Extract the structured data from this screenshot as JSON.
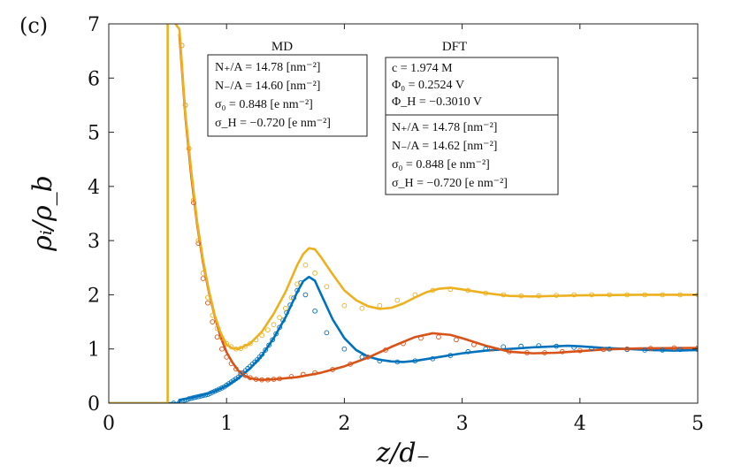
{
  "panel_label": "(c)",
  "chart_data": {
    "type": "line",
    "xlabel": "z/d₋",
    "ylabel": "ρᵢ/ρ_b",
    "xlim": [
      0,
      5
    ],
    "ylim": [
      0,
      7
    ],
    "xticks": [
      0,
      1,
      2,
      3,
      4,
      5
    ],
    "yticks": [
      0,
      1,
      2,
      3,
      4,
      5,
      6,
      7
    ],
    "grid": false,
    "colors": {
      "blue": "#0072BD",
      "red": "#D95319",
      "yellow": "#EDB120"
    },
    "series": [
      {
        "name": "DFT cation (blue)",
        "style": "line",
        "color": "#0072BD",
        "x": [
          0,
          0.49,
          0.5,
          0.6,
          0.6,
          0.7,
          0.8,
          0.9,
          1.0,
          1.1,
          1.2,
          1.3,
          1.4,
          1.5,
          1.6,
          1.65,
          1.7,
          1.75,
          1.8,
          1.9,
          2.0,
          2.1,
          2.2,
          2.3,
          2.4,
          2.5,
          2.6,
          2.8,
          3.0,
          3.2,
          3.4,
          3.6,
          3.8,
          3.9,
          4.0,
          4.2,
          4.4,
          4.6,
          4.8,
          5.0
        ],
        "y": [
          0,
          0,
          0,
          0,
          0.06,
          0.1,
          0.15,
          0.22,
          0.32,
          0.46,
          0.64,
          0.88,
          1.2,
          1.58,
          2.05,
          2.25,
          2.33,
          2.26,
          2.02,
          1.55,
          1.2,
          0.98,
          0.86,
          0.8,
          0.77,
          0.76,
          0.78,
          0.85,
          0.92,
          0.97,
          1.0,
          1.03,
          1.05,
          1.06,
          1.05,
          1.02,
          1.0,
          0.98,
          0.97,
          0.98
        ]
      },
      {
        "name": "DFT anion (red)",
        "style": "line",
        "color": "#D95319",
        "x": [
          0.6,
          0.65,
          0.7,
          0.75,
          0.8,
          0.85,
          0.9,
          0.95,
          1.0,
          1.05,
          1.1,
          1.15,
          1.2,
          1.25,
          1.3,
          1.4,
          1.6,
          1.8,
          2.0,
          2.2,
          2.4,
          2.6,
          2.75,
          2.9,
          3.0,
          3.2,
          3.4,
          3.6,
          3.8,
          4.0,
          4.2,
          4.5,
          5.0
        ],
        "y": [
          6.8,
          5.3,
          4.2,
          3.3,
          2.6,
          2.05,
          1.6,
          1.22,
          0.94,
          0.75,
          0.6,
          0.51,
          0.46,
          0.44,
          0.43,
          0.44,
          0.48,
          0.56,
          0.68,
          0.84,
          1.04,
          1.22,
          1.29,
          1.26,
          1.2,
          1.06,
          0.95,
          0.92,
          0.93,
          0.96,
          0.99,
          1.01,
          1.02
        ]
      },
      {
        "name": "DFT total (yellow)",
        "style": "line",
        "color": "#EDB120",
        "x": [
          0,
          0.49,
          0.5,
          0.5,
          0.5,
          0.6,
          0.65,
          0.7,
          0.75,
          0.8,
          0.85,
          0.9,
          0.95,
          1.0,
          1.05,
          1.1,
          1.2,
          1.3,
          1.4,
          1.5,
          1.6,
          1.65,
          1.7,
          1.75,
          1.8,
          1.9,
          2.0,
          2.1,
          2.2,
          2.3,
          2.4,
          2.5,
          2.6,
          2.7,
          2.8,
          2.9,
          3.0,
          3.2,
          3.4,
          3.6,
          4.0,
          4.5,
          5.0
        ],
        "y": [
          0,
          0,
          0,
          7.2,
          7.2,
          6.9,
          5.35,
          4.3,
          3.35,
          2.65,
          2.08,
          1.62,
          1.3,
          1.08,
          1.01,
          1.0,
          1.1,
          1.32,
          1.65,
          2.05,
          2.55,
          2.75,
          2.86,
          2.84,
          2.7,
          2.38,
          2.08,
          1.9,
          1.79,
          1.74,
          1.76,
          1.84,
          1.95,
          2.05,
          2.11,
          2.13,
          2.1,
          2.03,
          1.98,
          1.97,
          1.99,
          2.0,
          2.0
        ]
      },
      {
        "name": "MD cation (blue circles)",
        "style": "markers",
        "color": "#0072BD",
        "x": [
          0.55,
          0.6,
          0.62,
          0.64,
          0.66,
          0.68,
          0.7,
          0.72,
          0.74,
          0.76,
          0.78,
          0.8,
          0.82,
          0.84,
          0.86,
          0.88,
          0.9,
          0.92,
          0.94,
          0.96,
          0.98,
          1.0,
          1.02,
          1.04,
          1.06,
          1.08,
          1.1,
          1.12,
          1.14,
          1.16,
          1.18,
          1.2,
          1.22,
          1.24,
          1.26,
          1.28,
          1.3,
          1.33,
          1.36,
          1.39,
          1.42,
          1.45,
          1.48,
          1.51,
          1.54,
          1.57,
          1.6,
          1.63,
          1.67,
          1.75,
          1.85,
          2.0,
          2.15,
          2.3,
          2.45,
          2.6,
          2.75,
          2.9,
          3.05,
          3.2,
          3.35,
          3.5,
          3.65,
          3.8,
          3.95,
          4.1,
          4.25,
          4.4,
          4.55,
          4.7,
          4.85,
          5.0
        ],
        "y": [
          0.0,
          0.01,
          0.03,
          0.05,
          0.06,
          0.08,
          0.09,
          0.1,
          0.11,
          0.12,
          0.13,
          0.14,
          0.15,
          0.16,
          0.18,
          0.2,
          0.22,
          0.24,
          0.26,
          0.28,
          0.3,
          0.33,
          0.36,
          0.39,
          0.42,
          0.45,
          0.48,
          0.52,
          0.56,
          0.6,
          0.64,
          0.68,
          0.72,
          0.76,
          0.8,
          0.85,
          0.9,
          0.98,
          1.07,
          1.17,
          1.28,
          1.4,
          1.53,
          1.67,
          1.81,
          1.94,
          2.08,
          2.22,
          2.0,
          1.7,
          1.3,
          1.0,
          0.85,
          0.78,
          0.76,
          0.78,
          0.82,
          0.88,
          0.95,
          1.0,
          1.04,
          1.05,
          1.06,
          1.05,
          1.03,
          1.01,
          1.0,
          0.99,
          0.98,
          0.98,
          0.99,
          0.99
        ]
      },
      {
        "name": "MD anion (red circles)",
        "style": "markers",
        "color": "#D95319",
        "x": [
          0.62,
          0.65,
          0.68,
          0.72,
          0.76,
          0.8,
          0.84,
          0.88,
          0.92,
          0.96,
          1.0,
          1.04,
          1.08,
          1.12,
          1.16,
          1.2,
          1.25,
          1.3,
          1.35,
          1.4,
          1.45,
          1.55,
          1.65,
          1.75,
          1.9,
          2.05,
          2.2,
          2.35,
          2.5,
          2.65,
          2.8,
          2.95,
          3.1,
          3.25,
          3.4,
          3.55,
          3.7,
          3.85,
          4.0,
          4.2,
          4.4,
          4.6,
          4.8,
          5.0
        ],
        "y": [
          6.6,
          5.5,
          4.7,
          3.7,
          2.95,
          2.3,
          1.85,
          1.5,
          1.22,
          1.0,
          0.85,
          0.73,
          0.63,
          0.56,
          0.51,
          0.47,
          0.44,
          0.43,
          0.43,
          0.44,
          0.45,
          0.49,
          0.53,
          0.56,
          0.62,
          0.72,
          0.85,
          0.98,
          1.1,
          1.2,
          1.22,
          1.17,
          1.08,
          1.0,
          0.95,
          0.93,
          0.93,
          0.95,
          0.97,
          0.99,
          1.0,
          1.01,
          1.02,
          1.02
        ]
      },
      {
        "name": "MD total (yellow circles)",
        "style": "markers",
        "color": "#EDB120",
        "x": [
          0.62,
          0.65,
          0.68,
          0.72,
          0.76,
          0.8,
          0.84,
          0.88,
          0.92,
          0.96,
          1.0,
          1.04,
          1.08,
          1.12,
          1.16,
          1.2,
          1.25,
          1.3,
          1.35,
          1.4,
          1.45,
          1.5,
          1.55,
          1.6,
          1.67,
          1.75,
          1.85,
          2.0,
          2.15,
          2.3,
          2.45,
          2.6,
          2.75,
          2.9,
          3.05,
          3.2,
          3.35,
          3.5,
          3.65,
          3.8,
          3.95,
          4.1,
          4.25,
          4.4,
          4.55,
          4.7,
          4.85,
          5.0
        ],
        "y": [
          6.6,
          5.5,
          4.7,
          3.75,
          3.0,
          2.4,
          1.95,
          1.62,
          1.38,
          1.2,
          1.1,
          1.04,
          1.0,
          1.01,
          1.05,
          1.1,
          1.17,
          1.25,
          1.35,
          1.45,
          1.58,
          1.75,
          1.95,
          2.2,
          2.55,
          2.4,
          2.15,
          1.8,
          1.75,
          1.8,
          1.9,
          2.0,
          2.08,
          2.1,
          2.08,
          2.03,
          2.0,
          1.98,
          1.98,
          1.99,
          2.0,
          2.0,
          2.0,
          2.0,
          2.0,
          2.0,
          2.0,
          2.0
        ]
      }
    ],
    "annotations": {
      "md_header": "MD",
      "dft_header": "DFT",
      "md_box": [
        "N₊/A = 14.78 [nm⁻²]",
        "N₋/A = 14.60 [nm⁻²]",
        "σ₀ = 0.848 [e nm⁻²]",
        "σ_H = −0.720 [e nm⁻²]"
      ],
      "dft_box_top": [
        "c = 1.974 M",
        "Φ₀ = 0.2524 V",
        "Φ_H = −0.3010 V"
      ],
      "dft_box_bottom": [
        "N₊/A = 14.78 [nm⁻²]",
        "N₋/A = 14.62 [nm⁻²]",
        "σ₀ = 0.848 [e nm⁻²]",
        "σ_H = −0.720 [e nm⁻²]"
      ]
    }
  }
}
